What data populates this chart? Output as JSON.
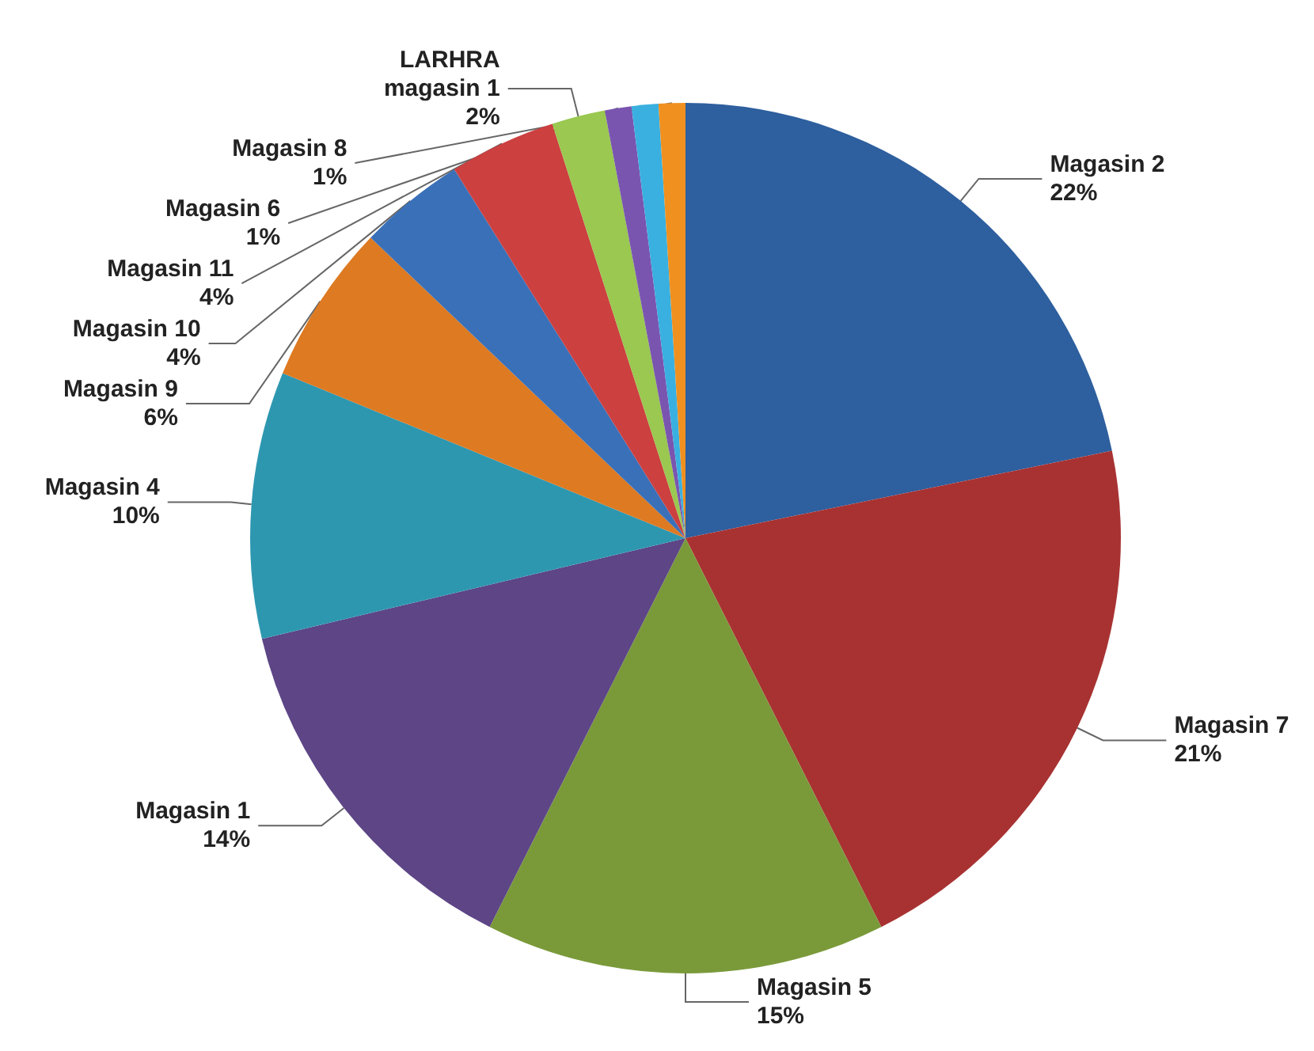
{
  "chart_data": {
    "type": "pie",
    "categories": [
      "Magasin 2",
      "Magasin 7",
      "Magasin 5",
      "Magasin 1",
      "Magasin 4",
      "Magasin 9",
      "Magasin 10",
      "Magasin 11",
      "LARHRA\nmagasin 1",
      "Magasin 6",
      null,
      "Magasin 8"
    ],
    "values": [
      22,
      21,
      15,
      14,
      10,
      6,
      4,
      4,
      2,
      1,
      1,
      1
    ],
    "value_labels": [
      "22%",
      "21%",
      "15%",
      "14%",
      "10%",
      "6%",
      "4%",
      "4%",
      "2%",
      "1%",
      null,
      "1%"
    ],
    "colors": [
      "#2e5f9e",
      "#a83232",
      "#7a9a3a",
      "#5d4586",
      "#2e97b0",
      "#dd7a22",
      "#3a70b8",
      "#cc4040",
      "#9ac850",
      "#7a55b0",
      "#3ab0e0",
      "#f0901f"
    ]
  }
}
